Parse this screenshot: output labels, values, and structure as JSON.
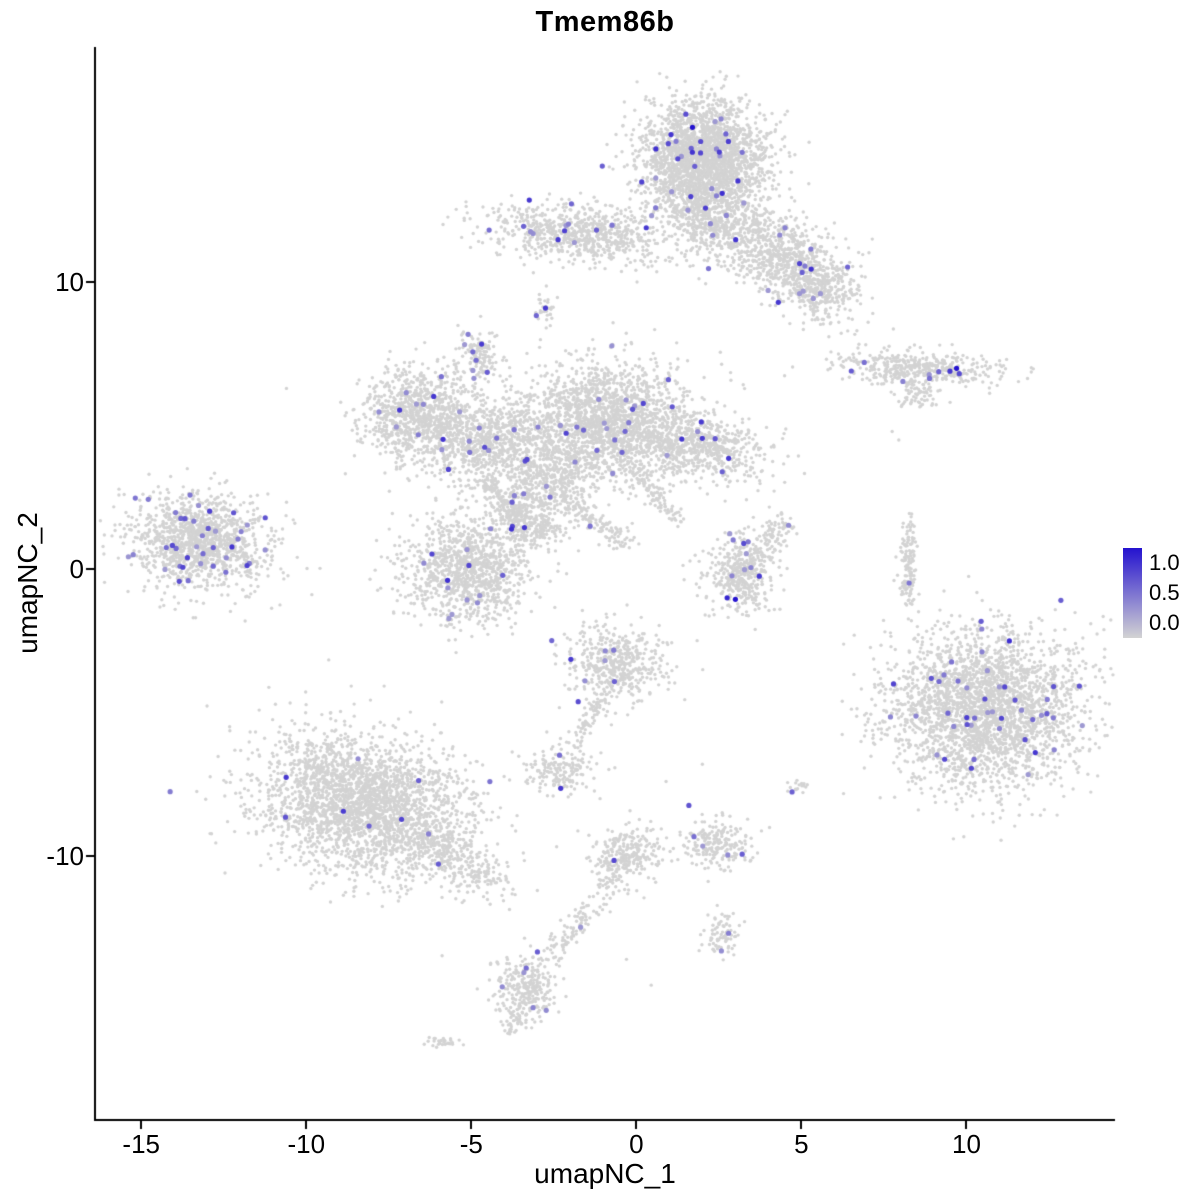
{
  "chart_data": {
    "type": "scatter",
    "title": "Tmem86b",
    "xlabel": "umapNC_1",
    "ylabel": "umapNC_2",
    "xlim": [
      -16.4,
      14.5
    ],
    "ylim": [
      -19.2,
      18.2
    ],
    "xticks": [
      -15,
      -10,
      -5,
      0,
      5,
      10
    ],
    "yticks": [
      10,
      0,
      -10
    ],
    "grid": false,
    "legend": {
      "position": "right",
      "ticks": [
        "1.0",
        "0.5",
        "0.0"
      ],
      "values": [
        1.0,
        0.5,
        0.0
      ]
    },
    "colors": {
      "low": "#d3d3d3",
      "high": "#2412cf",
      "axis": "#000000",
      "background": "#ffffff"
    },
    "point_radius": {
      "base": 1.7,
      "expressing": 2.6
    },
    "seed": 42,
    "clusters": [
      {
        "id": "top-main",
        "cx": 2.0,
        "cy": 14.3,
        "sdx": 0.95,
        "sdy": 1.0,
        "rot": 0,
        "n": 2300,
        "ne": 30
      },
      {
        "id": "top-neck",
        "cx": 2.2,
        "cy": 12.3,
        "sdx": 0.55,
        "sdy": 0.75,
        "rot": 0,
        "n": 400,
        "ne": 6
      },
      {
        "id": "top-right-arm",
        "cx": 4.4,
        "cy": 10.9,
        "sdx": 1.25,
        "sdy": 0.65,
        "rot": -38,
        "n": 900,
        "ne": 10
      },
      {
        "id": "top-right-tip",
        "cx": 5.6,
        "cy": 9.7,
        "sdx": 0.5,
        "sdy": 0.45,
        "rot": 0,
        "n": 180,
        "ne": 4
      },
      {
        "id": "top-left-arm",
        "cx": -1.7,
        "cy": 11.7,
        "sdx": 1.4,
        "sdy": 0.5,
        "rot": -8,
        "n": 750,
        "ne": 14
      },
      {
        "id": "tiny-upper-left",
        "cx": -2.75,
        "cy": 9.0,
        "sdx": 0.18,
        "sdy": 0.35,
        "rot": 0,
        "n": 30,
        "ne": 2
      },
      {
        "id": "right-streak",
        "cx": 8.6,
        "cy": 7.0,
        "sdx": 1.35,
        "sdy": 0.3,
        "rot": -3,
        "n": 420,
        "ne": 6
      },
      {
        "id": "right-streak-tail",
        "cx": 8.6,
        "cy": 6.1,
        "sdx": 0.4,
        "sdy": 0.3,
        "rot": 0,
        "n": 70,
        "ne": 1
      },
      {
        "id": "complex-left-lobe",
        "cx": -6.6,
        "cy": 5.4,
        "sdx": 0.85,
        "sdy": 0.8,
        "rot": 20,
        "n": 900,
        "ne": 12
      },
      {
        "id": "complex-left-knob",
        "cx": -4.75,
        "cy": 7.5,
        "sdx": 0.3,
        "sdy": 0.45,
        "rot": 0,
        "n": 130,
        "ne": 8
      },
      {
        "id": "complex-mid",
        "cx": -4.4,
        "cy": 4.4,
        "sdx": 1.05,
        "sdy": 0.75,
        "rot": 0,
        "n": 850,
        "ne": 10
      },
      {
        "id": "complex-main",
        "cx": -0.9,
        "cy": 5.1,
        "sdx": 1.25,
        "sdy": 1.05,
        "rot": 0,
        "n": 1900,
        "ne": 20
      },
      {
        "id": "complex-right-arm",
        "cx": 1.9,
        "cy": 4.3,
        "sdx": 1.05,
        "sdy": 0.55,
        "rot": -12,
        "n": 620,
        "ne": 9
      },
      {
        "id": "complex-down-spur",
        "cx": -2.7,
        "cy": 3.0,
        "sdx": 0.8,
        "sdy": 0.55,
        "rot": 35,
        "n": 380,
        "ne": 5
      },
      {
        "id": "strand-complex-to-center",
        "line": [
          -2.3,
          2.6,
          -0.3,
          0.9
        ],
        "jitter": 0.18,
        "n": 140,
        "ne": 1
      },
      {
        "id": "strand-complex-to-lower",
        "line": [
          -4.6,
          3.1,
          -3.6,
          1.8
        ],
        "jitter": 0.15,
        "n": 110,
        "ne": 1
      },
      {
        "id": "strand-main-down-right",
        "line": [
          0.0,
          3.3,
          1.3,
          1.6
        ],
        "jitter": 0.15,
        "n": 90,
        "ne": 0
      },
      {
        "id": "lower-center",
        "cx": -5.1,
        "cy": 0.0,
        "sdx": 0.95,
        "sdy": 0.9,
        "rot": -10,
        "n": 1100,
        "ne": 13
      },
      {
        "id": "lower-center-arm",
        "cx": -3.3,
        "cy": 1.6,
        "sdx": 0.6,
        "sdy": 0.4,
        "rot": -30,
        "n": 240,
        "ne": 3
      },
      {
        "id": "far-left",
        "cx": -13.2,
        "cy": 1.0,
        "sdx": 1.05,
        "sdy": 0.8,
        "rot": -12,
        "n": 1250,
        "ne": 38
      },
      {
        "id": "right-center-small",
        "cx": 3.2,
        "cy": -0.1,
        "sdx": 0.55,
        "sdy": 0.62,
        "rot": 0,
        "n": 400,
        "ne": 9
      },
      {
        "id": "right-center-tail",
        "cx": 4.2,
        "cy": 1.2,
        "sdx": 0.3,
        "sdy": 0.45,
        "rot": 0,
        "n": 80,
        "ne": 1
      },
      {
        "id": "right-sliver",
        "cx": 8.25,
        "cy": 0.2,
        "sdx": 0.13,
        "sdy": 0.75,
        "rot": 0,
        "n": 130,
        "ne": 1
      },
      {
        "id": "right-big",
        "cx": 10.6,
        "cy": -4.9,
        "sdx": 1.45,
        "sdy": 1.35,
        "rot": 0,
        "n": 2700,
        "ne": 45
      },
      {
        "id": "center-small",
        "cx": -0.6,
        "cy": -3.3,
        "sdx": 0.75,
        "sdy": 0.65,
        "rot": 0,
        "n": 470,
        "ne": 8
      },
      {
        "id": "strand-center-down",
        "line": [
          -0.9,
          -4.3,
          -2.1,
          -6.3
        ],
        "jitter": 0.13,
        "n": 80,
        "ne": 0
      },
      {
        "id": "small-left-blob",
        "cx": -2.35,
        "cy": -7.0,
        "sdx": 0.5,
        "sdy": 0.38,
        "rot": 0,
        "n": 170,
        "ne": 2
      },
      {
        "id": "bottom-left",
        "cx": -8.3,
        "cy": -8.2,
        "sdx": 1.6,
        "sdy": 1.15,
        "rot": -22,
        "n": 2700,
        "ne": 9
      },
      {
        "id": "bottom-left-tail",
        "line": [
          -6.3,
          -9.4,
          -4.4,
          -10.9
        ],
        "jitter": 0.42,
        "n": 260,
        "ne": 2
      },
      {
        "id": "small-bottom-right",
        "cx": 2.4,
        "cy": -9.6,
        "sdx": 0.55,
        "sdy": 0.45,
        "rot": 0,
        "n": 210,
        "ne": 5
      },
      {
        "id": "pair-dots",
        "cx": 4.9,
        "cy": -7.6,
        "sdx": 0.2,
        "sdy": 0.16,
        "rot": 0,
        "n": 16,
        "ne": 1
      },
      {
        "id": "strand-bottom-blob",
        "cx": -0.25,
        "cy": -9.9,
        "sdx": 0.5,
        "sdy": 0.5,
        "rot": 0,
        "n": 260,
        "ne": 1
      },
      {
        "id": "strand-bottom",
        "line": [
          -0.5,
          -10.6,
          -2.7,
          -13.6
        ],
        "jitter": 0.22,
        "n": 130,
        "ne": 2
      },
      {
        "id": "bottom-blob",
        "cx": -3.35,
        "cy": -14.6,
        "sdx": 0.45,
        "sdy": 0.55,
        "rot": 10,
        "n": 280,
        "ne": 5
      },
      {
        "id": "bottom-tail",
        "line": [
          -3.5,
          -15.3,
          -3.8,
          -16.1
        ],
        "jitter": 0.12,
        "n": 40,
        "ne": 0
      },
      {
        "id": "tiny-bottom-left",
        "cx": -5.9,
        "cy": -16.5,
        "sdx": 0.22,
        "sdy": 0.12,
        "rot": 0,
        "n": 30,
        "ne": 0
      },
      {
        "id": "small-right-bottom-blob",
        "cx": 2.6,
        "cy": -12.7,
        "sdx": 0.3,
        "sdy": 0.35,
        "rot": 0,
        "n": 80,
        "ne": 2
      }
    ],
    "singles": [
      [
        -10.6,
        6.3
      ],
      [
        7.75,
        4.8
      ],
      [
        7.95,
        4.5
      ],
      [
        3.6,
        -2.1
      ],
      [
        4.35,
        -1.4
      ],
      [
        6.6,
        -2.3
      ],
      [
        0.45,
        -14.5
      ],
      [
        -0.3,
        -13.6
      ],
      [
        -1.1,
        -8.0
      ],
      [
        2.0,
        -6.8
      ],
      [
        -3.0,
        -11.2
      ],
      [
        0.9,
        -7.4
      ]
    ],
    "highlight_points": [
      [
        1.7,
        15.4,
        1.0
      ],
      [
        2.6,
        13.1,
        0.85
      ],
      [
        9.7,
        7.0,
        1.0
      ],
      [
        9.5,
        6.9,
        0.8
      ],
      [
        3.0,
        -1.05,
        1.0
      ],
      [
        2.75,
        -1.0,
        0.9
      ],
      [
        11.3,
        -2.5,
        0.85
      ],
      [
        0.3,
        11.9,
        0.8
      ],
      [
        -13.6,
        0.4,
        0.75
      ],
      [
        4.3,
        9.3,
        0.8
      ]
    ]
  }
}
